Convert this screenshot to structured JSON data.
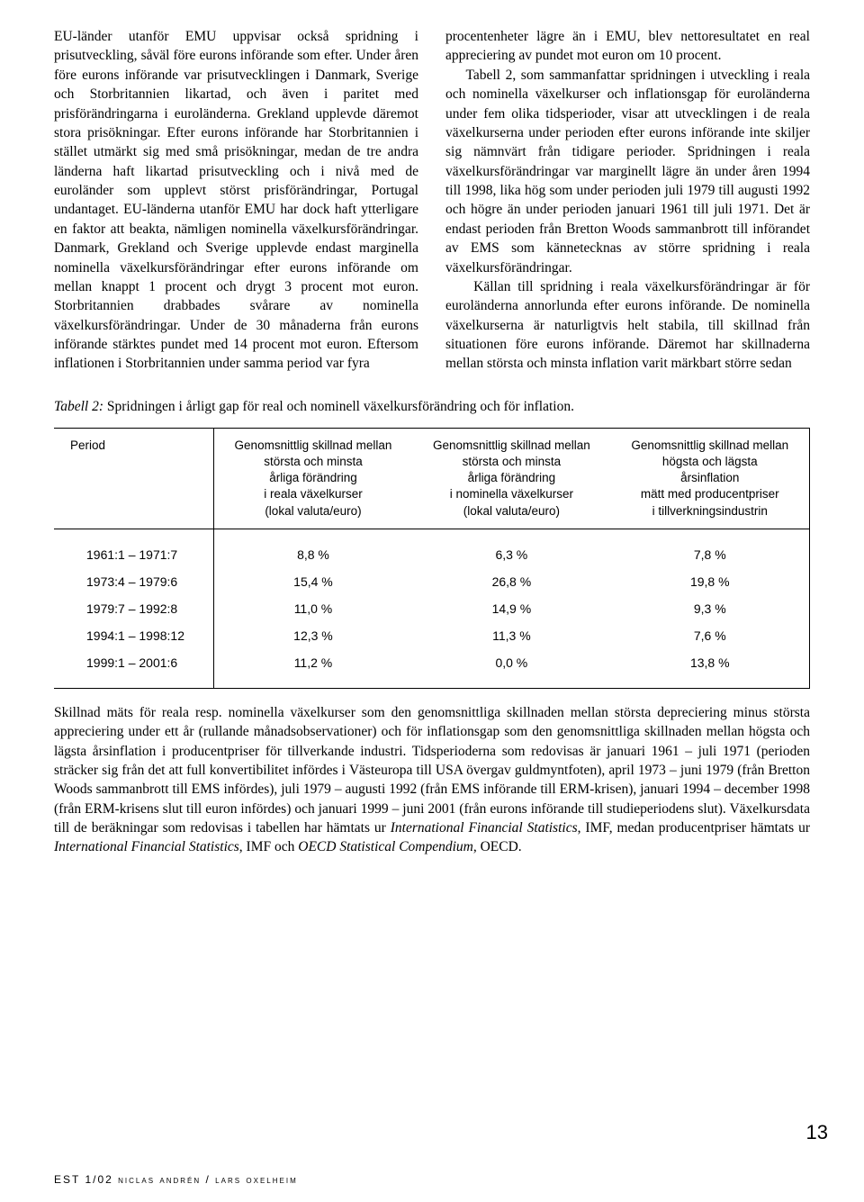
{
  "leftColumn": "EU-länder utanför EMU uppvisar också spridning i prisutveckling, såväl före eurons införande som efter. Under åren före eurons införande var prisutvecklingen i Danmark, Sverige och Storbritannien likartad, och även i paritet med prisförändringarna i euroländerna. Grekland upplevde däremot stora prisökningar. Efter eurons införande har Storbritannien i stället utmärkt sig med små prisökningar, medan de tre andra länderna haft likartad prisutveckling och i nivå med de euroländer som upplevt störst prisförändringar, Portugal undantaget. EU-länderna utanför EMU har dock haft ytterligare en faktor att beakta, nämligen nominella växelkursförändringar. Danmark, Grekland och Sverige upplevde endast marginella nominella växelkursförändringar efter eurons införande om mellan knappt 1 procent och drygt 3 procent mot euron. Storbritannien drabbades svårare av nominella växelkursförändringar. Under de 30 månaderna från eurons införande stärktes pundet med 14 procent mot euron. Eftersom inflationen i Storbritannien under samma period var fyra",
  "rightColumn": "procentenheter lägre än i EMU, blev nettoresultatet en real appreciering av pundet mot euron om 10 procent.\n    Tabell 2, som sammanfattar spridningen i utveckling i reala och nominella växelkurser och inflationsgap för euroländerna under fem olika tidsperioder, visar att utvecklingen i de reala växelkurserna under perioden efter eurons införande inte skiljer sig nämnvärt från tidigare perioder. Spridningen i reala växelkursförändringar var marginellt lägre än under åren 1994 till 1998, lika hög som under perioden juli 1979 till augusti 1992 och högre än under perioden januari 1961 till juli 1971. Det är endast perioden från Bretton Woods sammanbrott till införandet av EMS som kännetecknas av större spridning i reala växelkursförändringar.\n    Källan till spridning i reala växelkursförändringar är för euroländerna annorlunda efter eurons införande. De nominella växelkurserna är naturligtvis helt stabila, till skillnad från situationen före eurons införande. Däremot har skillnaderna mellan största och minsta inflation varit märkbart större sedan",
  "tableCaptionLabel": "Tabell 2:",
  "tableCaptionText": " Spridningen i årligt gap för real och nominell växelkursförändring och för inflation.",
  "table": {
    "headers": {
      "c0": "Period",
      "c1": "Genomsnittlig skillnad mellan\nstörsta och minsta\nårliga förändring\ni reala växelkurser\n(lokal valuta/euro)",
      "c2": "Genomsnittlig skillnad mellan\nstörsta och minsta\nårliga förändring\ni nominella växelkurser\n(lokal valuta/euro)",
      "c3": "Genomsnittlig skillnad mellan\nhögsta och lägsta\nårsinflation\nmätt med producentpriser\ni tillverkningsindustrin"
    },
    "rows": [
      {
        "period": "1961:1 – 1971:7",
        "real": "8,8 %",
        "nominal": "6,3 %",
        "inflation": "7,8 %"
      },
      {
        "period": "1973:4 – 1979:6",
        "real": "15,4 %",
        "nominal": "26,8 %",
        "inflation": "19,8 %"
      },
      {
        "period": "1979:7 – 1992:8",
        "real": "11,0 %",
        "nominal": "14,9 %",
        "inflation": "9,3 %"
      },
      {
        "period": "1994:1 – 1998:12",
        "real": "12,3 %",
        "nominal": "11,3 %",
        "inflation": "7,6 %"
      },
      {
        "period": "1999:1 – 2001:6",
        "real": "11,2 %",
        "nominal": "0,0 %",
        "inflation": "13,8 %"
      }
    ]
  },
  "tableNote": {
    "pre": "Skillnad mäts för reala resp. nominella växelkurser som den genomsnittliga skillnaden mellan största depreciering minus största appreciering under ett år (rullande månadsobservationer) och för inflationsgap som den genomsnittliga skillnaden mellan högsta och lägsta årsinflation i producentpriser för tillverkande industri. Tidsperioderna som redovisas är januari 1961 – juli 1971 (perioden sträcker sig från det att full konvertibilitet infördes i Västeuropa till USA övergav guldmyntfoten), april 1973 – juni 1979 (från Bretton Woods sammanbrott till EMS infördes), juli 1979 – augusti 1992 (från EMS införande till ERM-krisen), januari 1994 – december 1998 (från ERM-krisens slut till euron infördes) och januari 1999 – juni 2001 (från eurons införande till studieperiodens slut). Växelkursdata till de beräkningar som redovisas i tabellen har hämtats ur ",
    "it1": "International Financial Statistics",
    "mid1": ", IMF, medan producentpriser hämtats ur ",
    "it2": "International Financial Statistics",
    "mid2": ", IMF och ",
    "it3": "OECD Statistical Compendium",
    "post": ", OECD."
  },
  "pageNumber": "13",
  "footer": "EST 1/02 niclas andrén / lars oxelheim"
}
